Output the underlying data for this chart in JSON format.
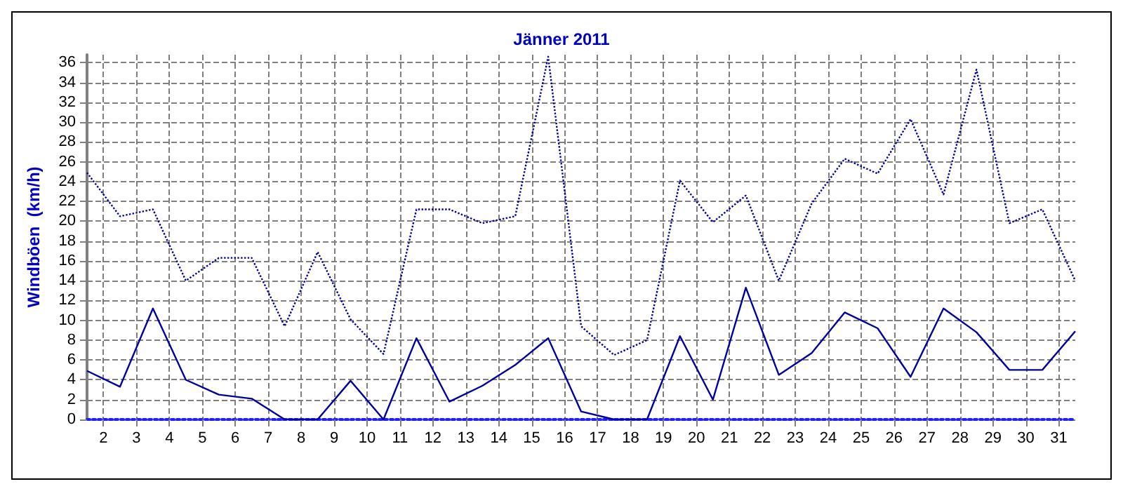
{
  "chart_data": {
    "type": "line",
    "title": "Jänner 2011",
    "ylabel": "Windböen  (km/h)",
    "x": [
      1.5,
      2.5,
      3.5,
      4.5,
      5.5,
      6.5,
      7.5,
      8.5,
      9.5,
      10.5,
      11.5,
      12.5,
      13.5,
      14.5,
      15.5,
      16.5,
      17.5,
      18.5,
      19.5,
      20.5,
      21.5,
      22.5,
      23.5,
      24.5,
      25.5,
      26.5,
      27.5,
      28.5,
      29.5,
      30.5,
      31.5
    ],
    "series": [
      {
        "color": "#0000a0",
        "line_style": "dotted",
        "values": [
          24.9,
          20.5,
          21.2,
          14.0,
          16.3,
          16.3,
          9.4,
          16.9,
          10.1,
          6.6,
          21.2,
          21.2,
          19.8,
          20.5,
          36.6,
          9.4,
          6.5,
          8.0,
          24.1,
          19.9,
          22.6,
          14.0,
          21.8,
          26.3,
          24.8,
          30.3,
          22.7,
          35.3,
          19.8,
          21.2,
          14.0
        ]
      },
      {
        "color": "#0000a0",
        "line_style": "solid",
        "values": [
          4.9,
          3.3,
          11.2,
          4.0,
          2.5,
          2.1,
          0,
          0,
          3.9,
          0,
          8.2,
          1.8,
          3.4,
          5.5,
          8.2,
          0.8,
          0,
          0,
          8.4,
          2.0,
          13.3,
          4.5,
          6.7,
          10.8,
          9.2,
          4.3,
          11.2,
          8.8,
          5.0,
          5.0,
          8.9
        ]
      }
    ],
    "xlim": [
      1.5,
      31.5
    ],
    "xticks": [
      2,
      3,
      4,
      5,
      6,
      7,
      8,
      9,
      10,
      11,
      12,
      13,
      14,
      15,
      16,
      17,
      18,
      19,
      20,
      21,
      22,
      23,
      24,
      25,
      26,
      27,
      28,
      29,
      30,
      31
    ],
    "ylim": [
      0,
      36.8
    ],
    "yticks": [
      0,
      2,
      4,
      6,
      8,
      10,
      12,
      14,
      16,
      18,
      20,
      22,
      24,
      26,
      28,
      30,
      32,
      34,
      36
    ],
    "grid": true,
    "marker": "none"
  }
}
